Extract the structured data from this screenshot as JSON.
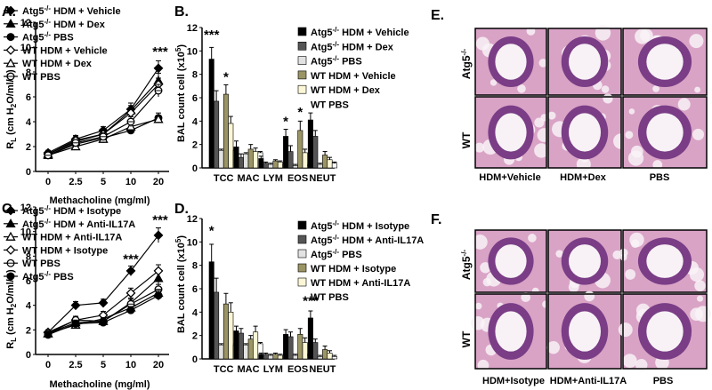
{
  "panels": {
    "A": "A.",
    "B": "B.",
    "C": "C.",
    "D": "D.",
    "E": "E.",
    "F": "F."
  },
  "line_axis": {
    "ylabel_main": "R",
    "ylabel_sub": "L",
    "ylabel_unit": " (cm H",
    "ylabel_unit_sub": "2",
    "ylabel_tail": "O/ml/S)",
    "xlabel": "Methacholine (mg/ml)"
  },
  "bar_axis": {
    "ylabel_main": "BAL count cell (x10",
    "ylabel_sup": "5",
    "ylabel_tail": ")"
  },
  "micro": {
    "row_labels": [
      "Atg5",
      "WT"
    ],
    "row_sup": "-/-",
    "E_cols": [
      "HDM+Vehicle",
      "HDM+Dex",
      "PBS"
    ],
    "F_cols": [
      "HDM+Isotype",
      "HDM+Anti-IL17A",
      "PBS"
    ],
    "colors": {
      "tissue_pink": "#d9a3c6",
      "tissue_purple": "#7a3d86",
      "lumen": "#f8f2f6",
      "border": "#000000"
    }
  },
  "chart_data": [
    {
      "panel": "A",
      "type": "line",
      "x": [
        "0",
        "2.5",
        "5",
        "10",
        "20"
      ],
      "ylim": [
        0,
        12
      ],
      "yticks": [
        0,
        2,
        4,
        6,
        8,
        10,
        12
      ],
      "annotations": [
        {
          "text": "***",
          "x": "20",
          "y": 9.3
        }
      ],
      "series": [
        {
          "name": "Atg5",
          "sup": "-/-",
          "tail": " HDM + Vehicle",
          "marker": "diamond",
          "values": [
            1.5,
            2.6,
            3.3,
            5.0,
            8.3
          ],
          "err": [
            0.2,
            0.3,
            0.3,
            0.5,
            0.6
          ]
        },
        {
          "name": "Atg5",
          "sup": "-/-",
          "tail": " HDM + Dex",
          "marker": "triangle",
          "values": [
            1.4,
            2.4,
            3.0,
            4.9,
            7.3
          ],
          "err": [
            0.2,
            0.3,
            0.3,
            0.4,
            0.6
          ]
        },
        {
          "name": "Atg5",
          "sup": "-/-",
          "tail": " PBS",
          "marker": "circle",
          "values": [
            1.3,
            2.2,
            2.7,
            3.3,
            4.3
          ],
          "err": [
            0.2,
            0.2,
            0.3,
            0.3,
            0.4
          ]
        },
        {
          "name": "WT HDM + Vehicle",
          "sup": "",
          "tail": "",
          "marker": "diamond-open",
          "values": [
            1.4,
            2.5,
            3.0,
            4.7,
            7.0
          ],
          "err": [
            0.2,
            0.3,
            0.3,
            0.4,
            0.5
          ]
        },
        {
          "name": "WT HDM + Dex",
          "sup": "",
          "tail": "",
          "marker": "triangle-open",
          "values": [
            1.3,
            2.0,
            2.6,
            3.6,
            4.2
          ],
          "err": [
            0.2,
            0.2,
            0.3,
            0.3,
            0.3
          ]
        },
        {
          "name": "WT PBS",
          "sup": "",
          "tail": "",
          "marker": "circle-open",
          "values": [
            1.3,
            2.3,
            2.8,
            4.0,
            6.5
          ],
          "err": [
            0.2,
            0.2,
            0.3,
            0.4,
            0.5
          ]
        }
      ]
    },
    {
      "panel": "C",
      "type": "line",
      "x": [
        "0",
        "2.5",
        "5",
        "10",
        "20"
      ],
      "ylim": [
        0,
        12
      ],
      "yticks": [
        0,
        2,
        4,
        6,
        8,
        10,
        12
      ],
      "annotations": [
        {
          "text": "***",
          "x": "10",
          "y": 7.4
        },
        {
          "text": "***",
          "x": "20",
          "y": 10.6
        }
      ],
      "series": [
        {
          "name": "Atg5",
          "sup": "-/-",
          "tail": " HDM + Isotype",
          "marker": "diamond",
          "values": [
            1.8,
            4.0,
            4.2,
            6.8,
            9.7
          ],
          "err": [
            0.2,
            0.3,
            0.3,
            0.4,
            0.6
          ]
        },
        {
          "name": "Atg5",
          "sup": "-/-",
          "tail": " HDM + Anti-IL17A",
          "marker": "triangle",
          "values": [
            1.7,
            2.6,
            2.7,
            4.2,
            6.2
          ],
          "err": [
            0.2,
            0.3,
            0.3,
            0.4,
            0.5
          ]
        },
        {
          "name": "WT HDM + Anti-IL17A",
          "sup": "",
          "tail": "",
          "marker": "triangle-open",
          "values": [
            1.7,
            2.4,
            2.9,
            3.8,
            5.0
          ],
          "err": [
            0.2,
            0.3,
            0.3,
            0.4,
            0.4
          ]
        },
        {
          "name": "WT HDM + Isotype",
          "sup": "",
          "tail": "",
          "marker": "diamond-open",
          "values": [
            1.8,
            2.8,
            3.2,
            5.0,
            6.8
          ],
          "err": [
            0.2,
            0.3,
            0.3,
            0.4,
            0.5
          ]
        },
        {
          "name": "WT PBS",
          "sup": "",
          "tail": "",
          "marker": "circle-open",
          "values": [
            1.7,
            2.8,
            2.7,
            4.1,
            5.3
          ],
          "err": [
            0.2,
            0.3,
            0.3,
            0.4,
            0.4
          ]
        },
        {
          "name": "Atg5",
          "sup": "-/-",
          "tail": " PBS",
          "marker": "circle",
          "values": [
            1.6,
            2.5,
            2.6,
            3.6,
            4.8
          ],
          "err": [
            0.2,
            0.2,
            0.3,
            0.3,
            0.4
          ]
        }
      ]
    },
    {
      "panel": "B",
      "type": "bar",
      "categories": [
        "TCC",
        "MAC",
        "LYM",
        "EOS",
        "NEUT"
      ],
      "ylim": [
        0,
        12
      ],
      "yticks": [
        0,
        2,
        4,
        6,
        8,
        10,
        12
      ],
      "annotations": [
        {
          "text": "***",
          "category": "TCC",
          "bar": 0,
          "y": 11.0
        },
        {
          "text": "*",
          "category": "TCC",
          "bar": 3,
          "y": 7.4
        },
        {
          "text": "*",
          "category": "EOS",
          "bar": 0,
          "y": 3.6
        },
        {
          "text": "*",
          "category": "EOS",
          "bar": 3,
          "y": 4.4
        }
      ],
      "series": [
        {
          "name": "Atg5",
          "sup": "-/-",
          "tail": " HDM + Vehicle",
          "color": "#000000",
          "values": [
            9.3,
            1.8,
            0.8,
            2.7,
            4.1
          ],
          "err": [
            1.0,
            0.5,
            0.2,
            0.6,
            0.6
          ]
        },
        {
          "name": "Atg5",
          "sup": "-/-",
          "tail": " HDM + Dex",
          "color": "#555555",
          "values": [
            5.7,
            0.9,
            0.4,
            1.4,
            2.7
          ],
          "err": [
            0.9,
            0.3,
            0.1,
            0.5,
            0.5
          ]
        },
        {
          "name": "Atg5",
          "sup": "-/-",
          "tail": " PBS",
          "color": "#e2e2e2",
          "values": [
            1.5,
            1.2,
            0.3,
            0.2,
            0.3
          ],
          "err": [
            0.1,
            0.1,
            0.1,
            0.1,
            0.1
          ]
        },
        {
          "name": "WT HDM + Vehicle",
          "sup": "",
          "tail": "",
          "color": "#9b9464",
          "values": [
            6.3,
            1.6,
            0.6,
            3.2,
            1.1
          ],
          "err": [
            0.8,
            0.4,
            0.1,
            0.8,
            0.3
          ]
        },
        {
          "name": "WT HDM + Dex",
          "sup": "",
          "tail": "",
          "color": "#fbf7d6",
          "values": [
            3.8,
            1.4,
            0.5,
            1.3,
            0.7
          ],
          "err": [
            0.6,
            0.3,
            0.1,
            0.3,
            0.2
          ]
        },
        {
          "name": "WT PBS",
          "sup": "",
          "tail": "",
          "color": "#ffffff",
          "values": [
            1.5,
            1.3,
            0.3,
            0.2,
            0.4
          ],
          "err": [
            0.1,
            0.1,
            0.1,
            0.1,
            0.1
          ]
        }
      ]
    },
    {
      "panel": "D",
      "type": "bar",
      "categories": [
        "TCC",
        "MAC",
        "LYM",
        "EOS",
        "NEUT"
      ],
      "ylim": [
        0,
        12
      ],
      "yticks": [
        0,
        2,
        4,
        6,
        8,
        10,
        12
      ],
      "annotations": [
        {
          "text": "*",
          "category": "TCC",
          "bar": 0,
          "y": 10.6
        },
        {
          "text": "***",
          "category": "NEUT",
          "bar": 0,
          "y": 4.6
        }
      ],
      "series": [
        {
          "name": "Atg5",
          "sup": "-/-",
          "tail": " HDM + Isotype",
          "color": "#000000",
          "values": [
            8.3,
            2.4,
            0.4,
            2.1,
            3.5
          ],
          "err": [
            1.5,
            0.4,
            0.1,
            0.4,
            0.6
          ]
        },
        {
          "name": "Atg5",
          "sup": "-/-",
          "tail": " HDM + Anti-IL17A",
          "color": "#555555",
          "values": [
            5.7,
            2.2,
            0.4,
            1.9,
            1.4
          ],
          "err": [
            1.2,
            0.4,
            0.1,
            0.4,
            0.3
          ]
        },
        {
          "name": "Atg5",
          "sup": "-/-",
          "tail": " PBS",
          "color": "#e2e2e2",
          "values": [
            1.2,
            1.2,
            0.3,
            0.3,
            0.2
          ],
          "err": [
            0.1,
            0.1,
            0.1,
            0.1,
            0.1
          ]
        },
        {
          "name": "WT HDM + Isotype",
          "sup": "",
          "tail": "",
          "color": "#9b9464",
          "values": [
            4.7,
            1.7,
            0.4,
            2.1,
            0.8
          ],
          "err": [
            0.9,
            0.3,
            0.1,
            0.5,
            0.3
          ]
        },
        {
          "name": "WT HDM + Anti-IL17A",
          "sup": "",
          "tail": "",
          "color": "#fbf7d6",
          "values": [
            4.0,
            2.3,
            0.3,
            1.4,
            0.5
          ],
          "err": [
            0.8,
            0.5,
            0.1,
            0.4,
            0.2
          ]
        },
        {
          "name": "WT PBS",
          "sup": "",
          "tail": "",
          "color": "#ffffff",
          "values": [
            1.2,
            1.3,
            0.3,
            0.3,
            0.2
          ],
          "err": [
            0.1,
            0.1,
            0.1,
            0.1,
            0.1
          ]
        }
      ]
    }
  ]
}
